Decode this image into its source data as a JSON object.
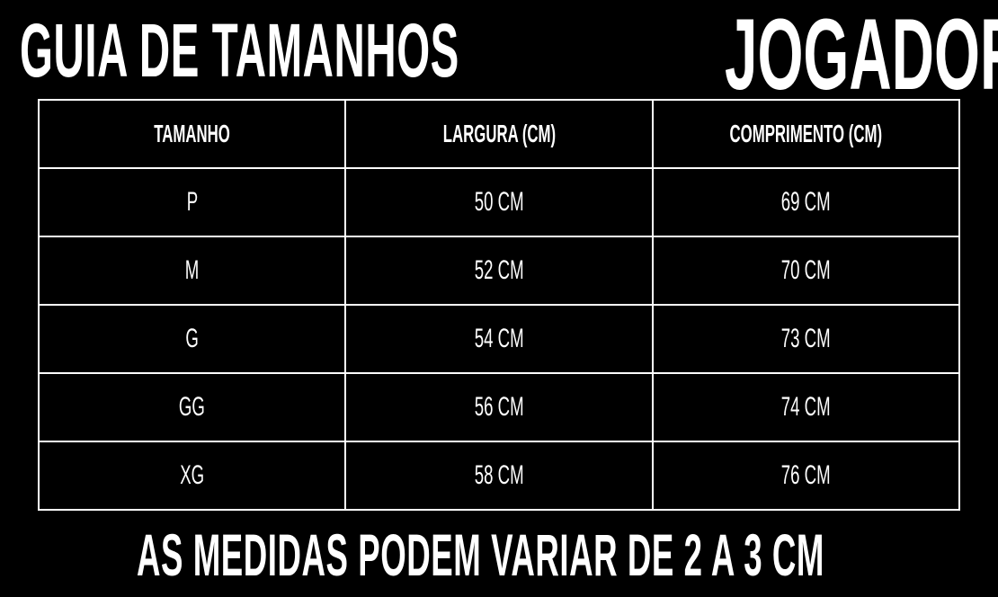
{
  "header": {
    "title": "GUIA DE TAMANHOS",
    "subtitle": "JOGADOR"
  },
  "table": {
    "columns": [
      "TAMANHO",
      "LARGURA (CM)",
      "COMPRIMENTO (CM)"
    ],
    "rows": [
      [
        "P",
        "50 CM",
        "69 CM"
      ],
      [
        "M",
        "52 CM",
        "70 CM"
      ],
      [
        "G",
        "54 CM",
        "73 CM"
      ],
      [
        "GG",
        "56 CM",
        "74 CM"
      ],
      [
        "XG",
        "58 CM",
        "76 CM"
      ]
    ]
  },
  "footer": {
    "note": "AS MEDIDAS PODEM VARIAR DE 2 A 3 CM"
  }
}
